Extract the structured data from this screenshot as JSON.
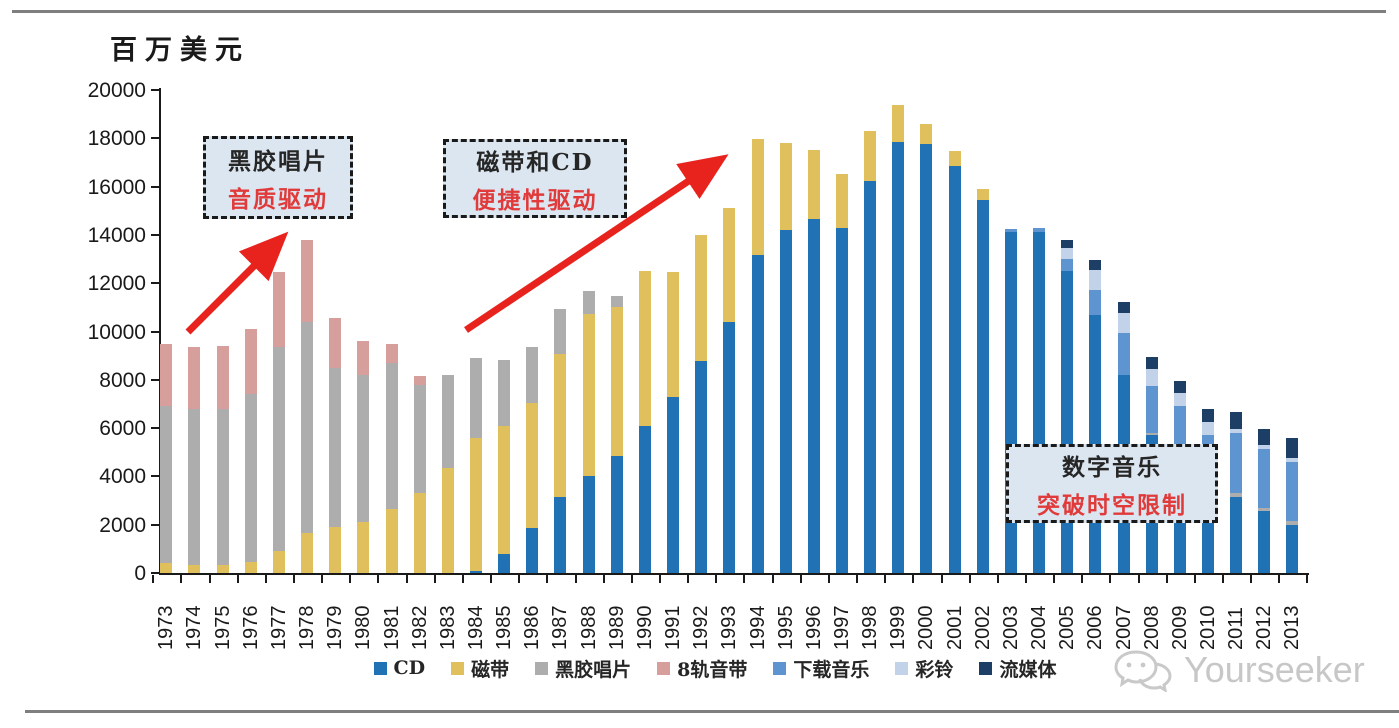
{
  "axis_title": "百万美元",
  "watermark": {
    "text": "Yourseeker",
    "icon": "wechat-icon"
  },
  "annotations": [
    {
      "line1": "黑胶唱片",
      "line2": "音质驱动"
    },
    {
      "line1": "磁带和CD",
      "line2": "便捷性驱动"
    },
    {
      "line1": "数字音乐",
      "line2": "突破时空限制"
    }
  ],
  "colors": {
    "annotation_bg": "#DCE6F1",
    "annotation_border": "#1A1A1A",
    "annotation_text": "#262626",
    "annotation_accent": "#E03A3A",
    "arrow": "#E8231D",
    "rule": "#7F7F7F",
    "watermark": "#C7C7C7",
    "axis": "#1A1A1A"
  },
  "chart_data": {
    "type": "bar",
    "stacked": true,
    "title": "",
    "xlabel": "",
    "ylabel": "百万美元",
    "ylim": [
      0,
      20000
    ],
    "y_ticks": [
      0,
      2000,
      4000,
      6000,
      8000,
      10000,
      12000,
      14000,
      16000,
      18000,
      20000
    ],
    "grid": false,
    "legend_position": "bottom",
    "categories": [
      "1973",
      "1974",
      "1975",
      "1976",
      "1977",
      "1978",
      "1979",
      "1980",
      "1981",
      "1982",
      "1983",
      "1984",
      "1985",
      "1986",
      "1987",
      "1988",
      "1989",
      "1990",
      "1991",
      "1992",
      "1993",
      "1994",
      "1995",
      "1996",
      "1997",
      "1998",
      "1999",
      "2000",
      "2001",
      "2002",
      "2003",
      "2004",
      "2005",
      "2006",
      "2007",
      "2008",
      "2009",
      "2010",
      "2011",
      "2012",
      "2013"
    ],
    "series": [
      {
        "name": "CD",
        "color": "#2171B5",
        "values": [
          0,
          0,
          0,
          0,
          0,
          0,
          0,
          0,
          0,
          0,
          0,
          100,
          790,
          1880,
          3130,
          4000,
          4840,
          6100,
          7300,
          8770,
          10400,
          13180,
          14220,
          14640,
          14290,
          16240,
          17830,
          17760,
          16860,
          15430,
          14100,
          14100,
          12500,
          10700,
          8180,
          5700,
          4300,
          3600,
          3150,
          2550,
          2000
        ]
      },
      {
        "name": "磁带",
        "color": "#DFC05C",
        "values": [
          400,
          350,
          350,
          450,
          900,
          1650,
          1900,
          2100,
          2670,
          3300,
          4340,
          5490,
          5300,
          5170,
          5930,
          6720,
          6160,
          6400,
          5180,
          5230,
          4700,
          4800,
          3590,
          2860,
          2250,
          2080,
          1530,
          840,
          630,
          460,
          0,
          0,
          0,
          0,
          0,
          0,
          0,
          0,
          0,
          0,
          0
        ]
      },
      {
        "name": "黑胶唱片",
        "color": "#ADADAD",
        "values": [
          6500,
          6450,
          6450,
          6950,
          8450,
          8750,
          6600,
          6080,
          6010,
          4470,
          3840,
          3300,
          2710,
          2300,
          1870,
          970,
          450,
          0,
          0,
          0,
          0,
          0,
          0,
          0,
          0,
          0,
          0,
          0,
          0,
          0,
          0,
          0,
          0,
          0,
          0,
          100,
          0,
          0,
          150,
          150,
          150
        ]
      },
      {
        "name": "8轨音带",
        "color": "#D79F9B",
        "values": [
          2600,
          2550,
          2600,
          2700,
          3100,
          3400,
          2050,
          1420,
          800,
          370,
          0,
          0,
          0,
          0,
          0,
          0,
          0,
          0,
          0,
          0,
          0,
          0,
          0,
          0,
          0,
          0,
          0,
          0,
          0,
          0,
          0,
          0,
          0,
          0,
          0,
          0,
          0,
          0,
          0,
          0,
          0
        ]
      },
      {
        "name": "下载音乐",
        "color": "#5E95D1",
        "values": [
          0,
          0,
          0,
          0,
          0,
          0,
          0,
          0,
          0,
          0,
          0,
          0,
          0,
          0,
          0,
          0,
          0,
          0,
          0,
          0,
          0,
          0,
          0,
          0,
          0,
          0,
          0,
          0,
          0,
          0,
          150,
          200,
          500,
          1000,
          1740,
          1950,
          2600,
          2100,
          2500,
          2450,
          2450
        ]
      },
      {
        "name": "彩铃",
        "color": "#C2D2E9",
        "values": [
          0,
          0,
          0,
          0,
          0,
          0,
          0,
          0,
          0,
          0,
          0,
          0,
          0,
          0,
          0,
          0,
          0,
          0,
          0,
          0,
          0,
          0,
          0,
          0,
          0,
          0,
          0,
          0,
          0,
          0,
          0,
          0,
          450,
          860,
          830,
          700,
          550,
          550,
          150,
          150,
          150
        ]
      },
      {
        "name": "流媒体",
        "color": "#1D3F66",
        "values": [
          0,
          0,
          0,
          0,
          0,
          0,
          0,
          0,
          0,
          0,
          0,
          0,
          0,
          0,
          0,
          0,
          0,
          0,
          0,
          0,
          0,
          0,
          0,
          0,
          0,
          0,
          0,
          0,
          0,
          0,
          0,
          0,
          350,
          390,
          490,
          500,
          490,
          550,
          700,
          650,
          850
        ]
      }
    ]
  }
}
